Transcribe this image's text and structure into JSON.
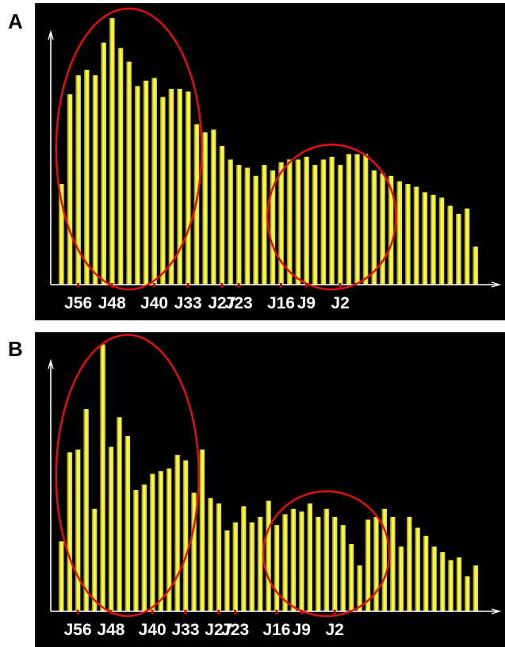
{
  "panels": [
    {
      "letter": "A"
    },
    {
      "letter": "B"
    }
  ],
  "colors": {
    "background": "#000000",
    "bar": "#e8e000",
    "bar_highlight": "#ffff66",
    "bar_shadow": "#8a8400",
    "axis": "#ffffff",
    "tick": "#cc0000",
    "ellipse": "#e01010",
    "label": "#ffffff"
  },
  "chart_data": [
    {
      "panel": "A",
      "type": "bar",
      "title": "",
      "xlabel": "",
      "ylabel": "",
      "tick_labels": [
        "J56",
        "J48",
        "J40",
        "J33",
        "J27",
        "J23",
        "J16",
        "J9",
        "J2"
      ],
      "tick_positions": [
        2,
        6,
        11,
        15,
        19,
        21,
        26,
        29,
        33
      ],
      "values": [
        37,
        70,
        77,
        79,
        77,
        89,
        98,
        87,
        82,
        73,
        75,
        76,
        69,
        72,
        72,
        71,
        59,
        56,
        57,
        51,
        46,
        44,
        43,
        40,
        44,
        42,
        45,
        46,
        46,
        47,
        44,
        46,
        47,
        44,
        48,
        48,
        48,
        42,
        41,
        40,
        38,
        37,
        36,
        34,
        33,
        32,
        29,
        26,
        28,
        14
      ],
      "ylim": [
        0,
        100
      ],
      "highlights": [
        {
          "shape": "ellipse",
          "from_bar": 0,
          "to_bar": 16
        },
        {
          "shape": "ellipse",
          "from_bar": 25,
          "to_bar": 39
        }
      ]
    },
    {
      "panel": "B",
      "type": "bar",
      "title": "",
      "xlabel": "",
      "ylabel": "",
      "tick_labels": [
        "J56",
        "J48",
        "J40",
        "J33",
        "J27",
        "J23",
        "J16",
        "J9",
        "J2"
      ],
      "tick_positions": [
        2,
        6,
        11,
        15,
        19,
        21,
        26,
        29,
        33
      ],
      "values": [
        26,
        59,
        60,
        75,
        38,
        99,
        61,
        72,
        65,
        45,
        47,
        51,
        52,
        53,
        58,
        56,
        44,
        60,
        42,
        40,
        30,
        33,
        39,
        33,
        35,
        41,
        32,
        36,
        38,
        37,
        40,
        35,
        38,
        35,
        32,
        25,
        17,
        34,
        35,
        38,
        35,
        24,
        35,
        31,
        28,
        24,
        22,
        19,
        20,
        13,
        17
      ],
      "ylim": [
        0,
        100
      ],
      "highlights": [
        {
          "shape": "ellipse",
          "from_bar": 0,
          "to_bar": 16
        },
        {
          "shape": "ellipse",
          "from_bar": 25,
          "to_bar": 39
        }
      ]
    }
  ]
}
